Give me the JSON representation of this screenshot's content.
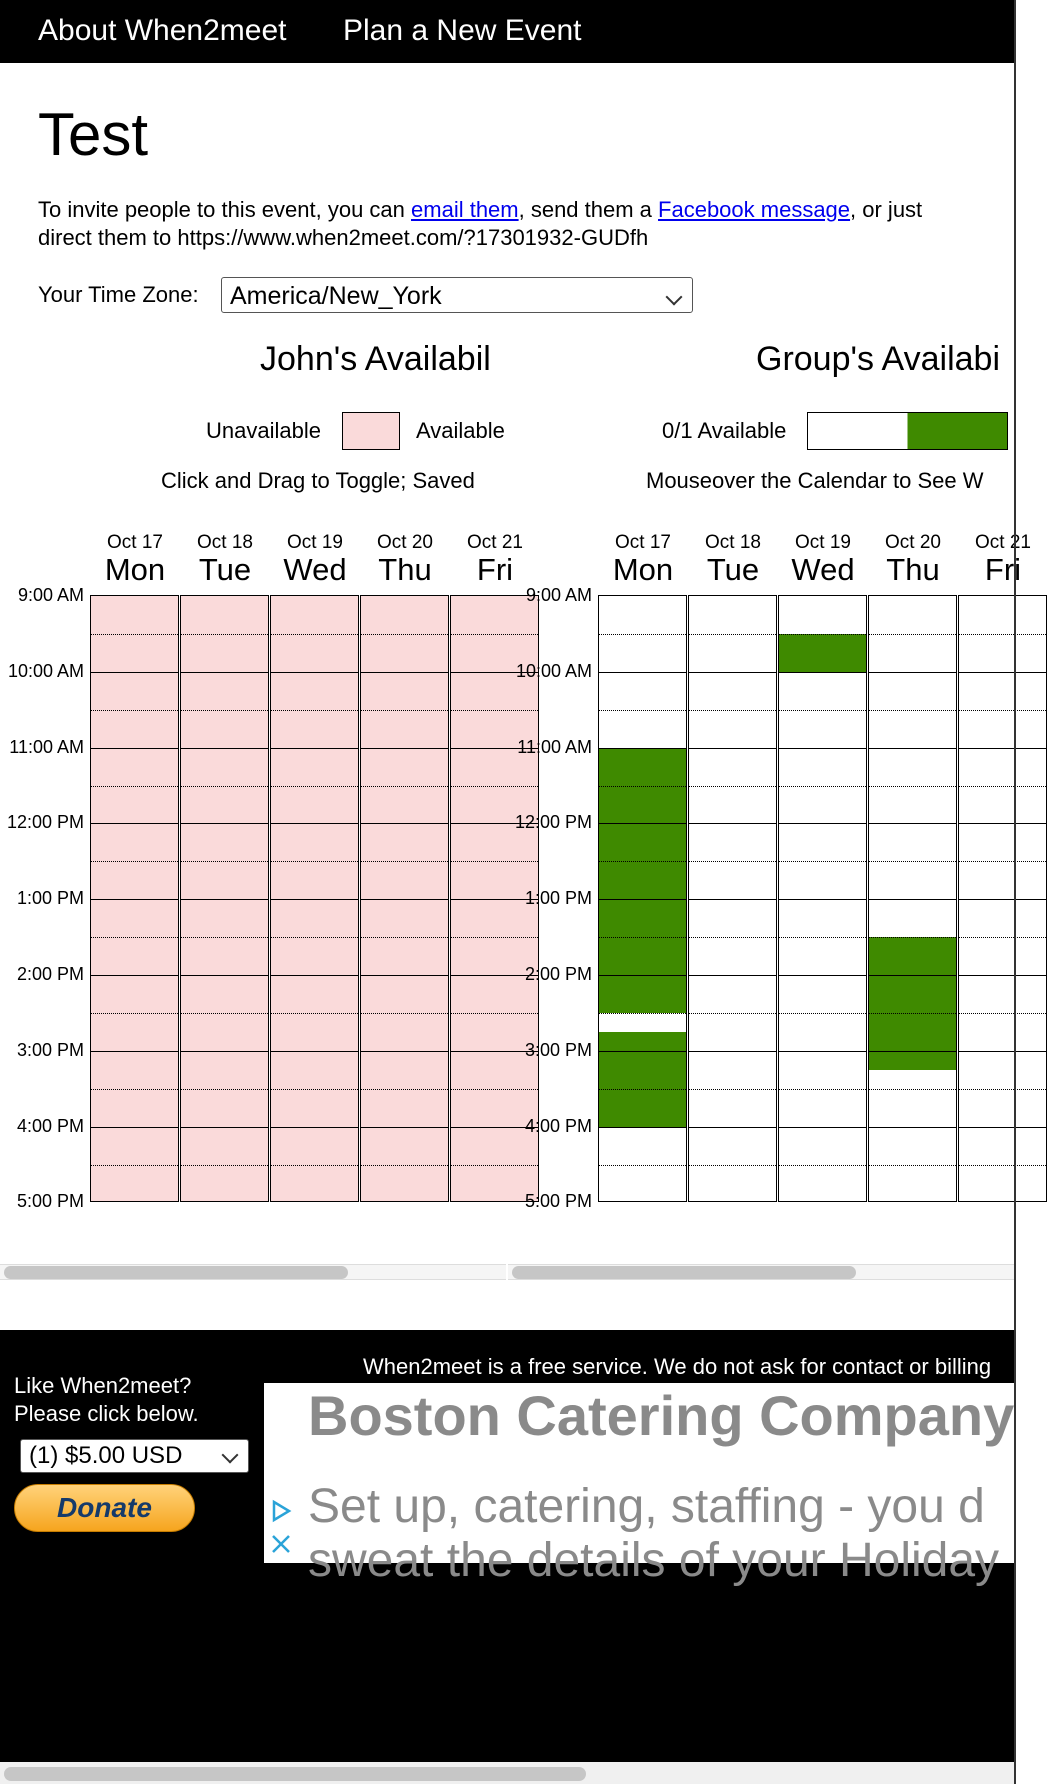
{
  "nav": {
    "about": "About When2meet",
    "plan": "Plan a New Event"
  },
  "event": {
    "title": "Test"
  },
  "invite": {
    "prefix": "To invite people to this event, you can ",
    "email_link": "email them",
    "middle": ", send them a ",
    "facebook_link": "Facebook message",
    "suffix": ", or just",
    "line2": "direct them to https://www.when2meet.com/?17301932-GUDfh"
  },
  "timezone": {
    "label": "Your Time Zone:",
    "value": "America/New_York"
  },
  "john": {
    "title": "John's Availabil",
    "unavailable": "Unavailable",
    "available": "Available",
    "hint": "Click and Drag to Toggle; Saved",
    "unavailable_color": "#fadada"
  },
  "group": {
    "title": "Group's Availabi",
    "legend": "0/1 Available",
    "hint": "Mouseover the Calendar to See W",
    "available_color": "#3f8a00",
    "blocks": [
      {
        "day": 0,
        "start": 4,
        "end": 11
      },
      {
        "day": 0,
        "start": 11.5,
        "end": 14
      },
      {
        "day": 2,
        "start": 1,
        "end": 2
      },
      {
        "day": 3,
        "start": 9,
        "end": 12.5
      }
    ]
  },
  "days": [
    {
      "date": "Oct 17",
      "day": "Mon"
    },
    {
      "date": "Oct 18",
      "day": "Tue"
    },
    {
      "date": "Oct 19",
      "day": "Wed"
    },
    {
      "date": "Oct 20",
      "day": "Thu"
    },
    {
      "date": "Oct 21",
      "day": "Fri"
    }
  ],
  "times": [
    "9:00 AM",
    "10:00 AM",
    "11:00 AM",
    "12:00 PM",
    "1:00 PM",
    "2:00 PM",
    "3:00 PM",
    "4:00 PM",
    "5:00 PM"
  ],
  "footer": {
    "notice": "When2meet is a free service. We do not ask for contact or billing",
    "like_line1": "Like When2meet?",
    "like_line2": "Please click below.",
    "donation_amount": "(1) $5.00 USD",
    "donate_button": "Donate",
    "ad_title": "Boston Catering Company",
    "ad_line1": "Set up, catering, staffing - you d",
    "ad_line2": "sweat the details of your Holiday"
  }
}
